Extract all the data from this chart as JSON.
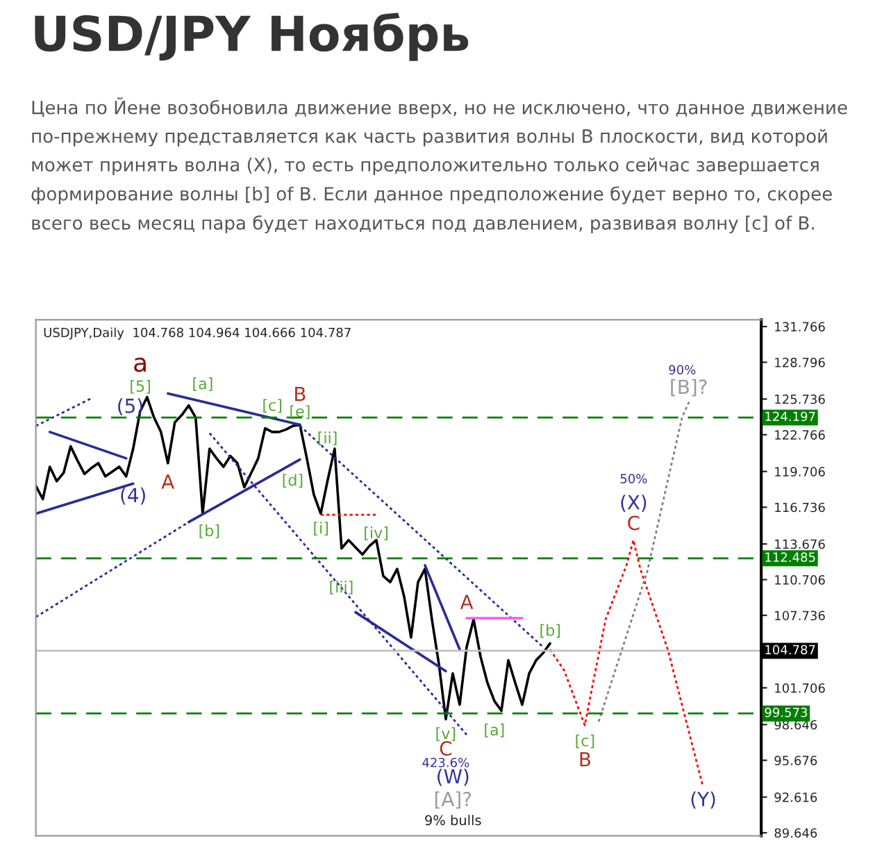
{
  "chart_data": {
    "type": "line",
    "title": "USD/JPY Ноябрь",
    "subtitle": "Цена по Йене возобновила движение вверх, но не исключено, что данное движение по-прежнему представляется как часть развития волны B плоскости, вид которой может принять волна (X), то есть предположительно только сейчас завершается формирование волны [b] of B. Если данное предположение будет верно то, скорее всего весь месяц пара будет находиться под давлением, развивая волну [c] of B.",
    "categories": [
      null,
      null,
      null,
      null,
      null,
      null,
      null,
      null,
      null,
      null,
      null,
      null,
      null,
      null,
      null,
      null,
      null,
      null,
      null,
      null,
      null,
      null,
      null,
      null,
      null,
      null,
      null,
      null,
      null,
      null,
      null,
      null,
      null,
      null,
      null,
      null,
      null,
      null,
      null,
      null,
      null,
      null,
      null,
      null,
      null,
      null,
      null,
      null,
      null,
      null,
      null,
      null,
      null,
      null,
      null,
      null,
      null,
      null,
      null,
      null,
      null,
      null,
      null,
      null,
      null,
      null,
      null,
      null,
      null,
      null,
      null,
      null,
      null,
      null,
      null,
      null,
      null,
      null,
      null,
      null,
      null,
      null,
      null,
      null,
      null,
      null,
      null,
      null,
      null,
      null,
      null,
      null,
      null,
      null,
      null,
      null,
      null,
      null,
      null,
      null,
      null,
      null,
      null,
      null,
      null
    ],
    "ylim": [
      89.39,
      132.33
    ],
    "yticks": [
      131.766,
      128.796,
      125.736,
      122.766,
      119.706,
      116.736,
      113.676,
      110.706,
      107.736,
      101.706,
      98.646,
      95.676,
      92.616,
      89.646
    ],
    "tick_labels": "y",
    "grid": false,
    "series": [
      {
        "color": "#000000",
        "line_style": "solid",
        "values": [
          118.5,
          117.4,
          120.1,
          118.9,
          119.6,
          121.8,
          120.6,
          119.5,
          120.0,
          120.4,
          119.3,
          119.7,
          120.1,
          119.3,
          121.6,
          124.7,
          125.9,
          124.2,
          123.0,
          120.4,
          123.8,
          124.4,
          125.2,
          124.2,
          116.2,
          121.6,
          120.8,
          120.1,
          121.0,
          120.4,
          118.4,
          119.6,
          120.8,
          123.3,
          123.0,
          123.0,
          123.2,
          123.5,
          123.6,
          120.8,
          117.8,
          116.2,
          119.0,
          121.6,
          113.3,
          114.0,
          113.4,
          112.8,
          113.5,
          114.0,
          111.0,
          110.5,
          111.6,
          109.3,
          105.9,
          110.5,
          111.6,
          107.4,
          103.7,
          99.1,
          102.9,
          100.3,
          105.1,
          107.4,
          104.3,
          102.1,
          100.6,
          99.8,
          104.0,
          102.1,
          100.3,
          102.9,
          104.0,
          104.6,
          105.4,
          null,
          null,
          null,
          null,
          null,
          null,
          null,
          null,
          null,
          null,
          null,
          null,
          null,
          null,
          null,
          null,
          null,
          null,
          null,
          null,
          null,
          null,
          null,
          null,
          null,
          null,
          null,
          null,
          null,
          null
        ]
      },
      {
        "color": "#ff0000",
        "line_style": "dotted",
        "values": [
          null,
          null,
          null,
          null,
          null,
          null,
          null,
          null,
          null,
          null,
          null,
          null,
          null,
          null,
          null,
          null,
          null,
          null,
          null,
          null,
          null,
          null,
          null,
          null,
          null,
          null,
          null,
          null,
          null,
          null,
          null,
          null,
          null,
          null,
          null,
          null,
          null,
          null,
          null,
          null,
          null,
          null,
          null,
          null,
          null,
          null,
          null,
          null,
          null,
          null,
          null,
          null,
          null,
          null,
          null,
          null,
          null,
          null,
          null,
          null,
          null,
          null,
          null,
          null,
          null,
          null,
          null,
          null,
          null,
          null,
          null,
          null,
          null,
          null,
          104.9,
          null,
          103.2,
          null,
          null,
          98.6,
          null,
          null,
          107.4,
          null,
          null,
          111.9,
          114.0,
          111.6,
          null,
          null,
          null,
          104.8,
          null,
          null,
          null,
          null,
          93.5,
          null,
          null,
          null,
          null,
          null,
          null,
          null,
          null
        ]
      },
      {
        "color": "#808080",
        "line_style": "dotted",
        "values": [
          null,
          null,
          null,
          null,
          null,
          null,
          null,
          null,
          null,
          null,
          null,
          null,
          null,
          null,
          null,
          null,
          null,
          null,
          null,
          null,
          null,
          null,
          null,
          null,
          null,
          null,
          null,
          null,
          null,
          null,
          null,
          null,
          null,
          null,
          null,
          null,
          null,
          null,
          null,
          null,
          null,
          null,
          null,
          null,
          null,
          null,
          null,
          null,
          null,
          null,
          null,
          null,
          null,
          null,
          null,
          null,
          null,
          null,
          null,
          null,
          null,
          null,
          null,
          null,
          null,
          null,
          null,
          null,
          null,
          null,
          null,
          null,
          null,
          null,
          null,
          null,
          null,
          null,
          null,
          null,
          null,
          98.9,
          null,
          null,
          null,
          null,
          null,
          null,
          111.4,
          null,
          null,
          null,
          null,
          124.2,
          125.5,
          null,
          null,
          null,
          null,
          null,
          null,
          null,
          null,
          null,
          null
        ]
      },
      {
        "color": "#2a2a9a",
        "line_style": "solid",
        "values": [
          null,
          null,
          123.0,
          null,
          null,
          null,
          null,
          null,
          null,
          null,
          null,
          null,
          null,
          120.8,
          null,
          null,
          null,
          null,
          null,
          null,
          null,
          null,
          null,
          null,
          null,
          null,
          null,
          null,
          null,
          null,
          null,
          null,
          null,
          null,
          null,
          null,
          null,
          null,
          null,
          null,
          null,
          null,
          null,
          null,
          null,
          null,
          null,
          null,
          null,
          null,
          null,
          null,
          null,
          null,
          null,
          null,
          null,
          null,
          null,
          null,
          null,
          null,
          null,
          null,
          null,
          null,
          null,
          null,
          null,
          null,
          null,
          null,
          null,
          null,
          null,
          null,
          null,
          null,
          null,
          null,
          null,
          null,
          null,
          null,
          null,
          null,
          null,
          null,
          null,
          null,
          null,
          null,
          null,
          null,
          null,
          null,
          null,
          null,
          null,
          null,
          null,
          null,
          null,
          null,
          null
        ]
      },
      {
        "color": "#2a2a9a",
        "line_style": "solid",
        "values": [
          116.2,
          null,
          null,
          null,
          null,
          null,
          null,
          null,
          null,
          null,
          null,
          null,
          null,
          null,
          118.7,
          null,
          null,
          null,
          null,
          null,
          null,
          null,
          null,
          null,
          null,
          null,
          null,
          null,
          null,
          null,
          null,
          null,
          null,
          null,
          null,
          null,
          null,
          null,
          null,
          null,
          null,
          null,
          null,
          null,
          null,
          null,
          null,
          null,
          null,
          null,
          null,
          null,
          null,
          null,
          null,
          null,
          null,
          null,
          null,
          null,
          null,
          null,
          null,
          null,
          null,
          null,
          null,
          null,
          null,
          null,
          null,
          null,
          null,
          null,
          null,
          null,
          null,
          null,
          null,
          null,
          null,
          null,
          null,
          null,
          null,
          null,
          null,
          null,
          null,
          null,
          null,
          null,
          null,
          null,
          null,
          null,
          null,
          null,
          null,
          null,
          null,
          null,
          null,
          null,
          null
        ]
      },
      {
        "color": "#2a2a9a",
        "line_style": "solid",
        "values": [
          null,
          null,
          null,
          null,
          null,
          null,
          null,
          null,
          null,
          null,
          null,
          null,
          null,
          null,
          null,
          null,
          null,
          null,
          null,
          126.2,
          null,
          null,
          null,
          null,
          null,
          null,
          null,
          null,
          null,
          null,
          null,
          null,
          null,
          null,
          null,
          null,
          null,
          null,
          123.6,
          null,
          null,
          null,
          null,
          null,
          null,
          null,
          null,
          null,
          null,
          null,
          null,
          null,
          null,
          null,
          null,
          null,
          null,
          null,
          null,
          null,
          null,
          null,
          null,
          null,
          null,
          null,
          null,
          null,
          null,
          null,
          null,
          null,
          null,
          null,
          null,
          null,
          null,
          null,
          null,
          null,
          null,
          null,
          null,
          null,
          null,
          null,
          null,
          null,
          null,
          null,
          null,
          null,
          null,
          null,
          null,
          null,
          null,
          null,
          null,
          null,
          null,
          null,
          null,
          null,
          null
        ]
      },
      {
        "color": "#2a2a9a",
        "line_style": "solid",
        "values": [
          null,
          null,
          null,
          null,
          null,
          null,
          null,
          null,
          null,
          null,
          null,
          null,
          null,
          null,
          null,
          null,
          null,
          null,
          null,
          null,
          null,
          null,
          115.5,
          null,
          null,
          null,
          null,
          null,
          null,
          null,
          null,
          null,
          null,
          null,
          null,
          null,
          null,
          null,
          120.7,
          null,
          null,
          null,
          null,
          null,
          null,
          null,
          null,
          null,
          null,
          null,
          null,
          null,
          null,
          null,
          null,
          null,
          null,
          null,
          null,
          null,
          null,
          null,
          null,
          null,
          null,
          null,
          null,
          null,
          null,
          null,
          null,
          null,
          null,
          null,
          null,
          null,
          null,
          null,
          null,
          null,
          null,
          null,
          null,
          null,
          null,
          null,
          null,
          null,
          null,
          null,
          null,
          null,
          null,
          null,
          null,
          null,
          null,
          null,
          null,
          null,
          null,
          null,
          null,
          null,
          null
        ]
      },
      {
        "color": "#2a2a9a",
        "line_style": "solid",
        "values": [
          null,
          null,
          null,
          null,
          null,
          null,
          null,
          null,
          null,
          null,
          null,
          null,
          null,
          null,
          null,
          null,
          null,
          null,
          null,
          null,
          null,
          null,
          null,
          null,
          null,
          null,
          null,
          null,
          null,
          null,
          null,
          null,
          null,
          null,
          null,
          null,
          null,
          null,
          null,
          null,
          null,
          null,
          null,
          null,
          null,
          null,
          null,
          null,
          null,
          null,
          null,
          null,
          null,
          null,
          null,
          null,
          111.9,
          null,
          null,
          null,
          null,
          104.9,
          null,
          null,
          null,
          null,
          null,
          null,
          null,
          null,
          null,
          null,
          null,
          null,
          null,
          null,
          null,
          null,
          null,
          null,
          null,
          null,
          null,
          null,
          null,
          null,
          null,
          null,
          null,
          null,
          null,
          null,
          null,
          null,
          null,
          null,
          null,
          null,
          null,
          null,
          null,
          null,
          null,
          null,
          null
        ]
      },
      {
        "color": "#2a2a9a",
        "line_style": "solid",
        "values": [
          null,
          null,
          null,
          null,
          null,
          null,
          null,
          null,
          null,
          null,
          null,
          null,
          null,
          null,
          null,
          null,
          null,
          null,
          null,
          null,
          null,
          null,
          null,
          null,
          null,
          null,
          null,
          null,
          null,
          null,
          null,
          null,
          null,
          null,
          null,
          null,
          null,
          null,
          null,
          null,
          null,
          null,
          null,
          null,
          null,
          null,
          108.0,
          null,
          null,
          null,
          null,
          null,
          null,
          null,
          null,
          null,
          null,
          null,
          null,
          103.1,
          null,
          null,
          null,
          null,
          null,
          null,
          null,
          null,
          null,
          null,
          null,
          null,
          null,
          null,
          null,
          null,
          null,
          null,
          null,
          null,
          null,
          null,
          null,
          null,
          null,
          null,
          null,
          null,
          null,
          null,
          null,
          null,
          null,
          null,
          null,
          null,
          null,
          null,
          null,
          null,
          null,
          null,
          null,
          null,
          null
        ]
      },
      {
        "color": "#2a2a9a",
        "line_style": "dotted",
        "values": [
          107.6,
          null,
          null,
          null,
          null,
          null,
          null,
          null,
          null,
          null,
          null,
          null,
          null,
          null,
          null,
          null,
          null,
          null,
          null,
          null,
          null,
          null,
          115.5,
          null,
          null,
          null,
          null,
          null,
          null,
          null,
          null,
          null,
          null,
          null,
          null,
          null,
          null,
          null,
          null,
          null,
          null,
          null,
          null,
          null,
          null,
          null,
          null,
          null,
          null,
          null,
          null,
          null,
          null,
          null,
          null,
          null,
          null,
          null,
          null,
          null,
          null,
          null,
          null,
          null,
          null,
          null,
          null,
          null,
          null,
          null,
          null,
          null,
          null,
          null,
          null,
          null,
          null,
          null,
          null,
          null,
          null,
          null,
          null,
          null,
          null,
          null,
          null,
          null,
          null,
          null,
          null,
          null,
          null,
          null,
          null,
          null,
          null,
          null,
          null,
          null,
          null,
          null,
          null,
          null,
          null
        ]
      },
      {
        "color": "#2a2a9a",
        "line_style": "dotted",
        "values": [
          123.5,
          null,
          null,
          null,
          null,
          null,
          null,
          null,
          125.8,
          null,
          null,
          null,
          null,
          null,
          null,
          null,
          null,
          null,
          null,
          null,
          null,
          null,
          null,
          null,
          null,
          null,
          null,
          null,
          null,
          null,
          null,
          null,
          null,
          null,
          null,
          null,
          null,
          null,
          null,
          null,
          null,
          null,
          null,
          null,
          null,
          null,
          null,
          null,
          null,
          null,
          null,
          null,
          null,
          null,
          null,
          null,
          null,
          null,
          null,
          null,
          null,
          null,
          null,
          null,
          null,
          null,
          null,
          null,
          null,
          null,
          null,
          null,
          null,
          null,
          null,
          null,
          null,
          null,
          null,
          null,
          null,
          null,
          null,
          null,
          null,
          null,
          null,
          null,
          null,
          null,
          null,
          null,
          null,
          null,
          null,
          null,
          null,
          null,
          null,
          null,
          null,
          null,
          null,
          null,
          null
        ]
      },
      {
        "color": "#2a2a9a",
        "line_style": "dotted",
        "values": [
          null,
          null,
          null,
          null,
          null,
          null,
          null,
          null,
          null,
          null,
          null,
          null,
          null,
          null,
          null,
          null,
          null,
          null,
          null,
          null,
          null,
          null,
          null,
          null,
          null,
          null,
          null,
          null,
          null,
          null,
          null,
          null,
          null,
          null,
          null,
          null,
          null,
          null,
          123.5,
          null,
          null,
          null,
          null,
          null,
          null,
          null,
          null,
          null,
          null,
          null,
          null,
          null,
          null,
          null,
          null,
          null,
          null,
          null,
          null,
          null,
          null,
          null,
          null,
          null,
          null,
          null,
          null,
          null,
          null,
          null,
          null,
          null,
          null,
          105.1,
          null,
          null,
          null,
          null,
          null,
          null,
          null,
          null,
          null,
          null,
          null,
          null,
          null,
          null,
          null,
          null,
          null,
          null,
          null,
          null,
          null,
          null,
          null,
          null,
          null,
          null,
          null,
          null,
          null,
          null,
          null
        ]
      },
      {
        "color": "#2a2a9a",
        "line_style": "dotted",
        "values": [
          null,
          null,
          null,
          null,
          null,
          null,
          null,
          null,
          null,
          null,
          null,
          null,
          null,
          null,
          null,
          null,
          null,
          null,
          null,
          null,
          null,
          null,
          null,
          null,
          null,
          122.9,
          null,
          null,
          null,
          null,
          null,
          null,
          null,
          null,
          null,
          null,
          null,
          null,
          null,
          null,
          null,
          null,
          null,
          null,
          null,
          null,
          null,
          null,
          null,
          null,
          null,
          null,
          null,
          null,
          null,
          null,
          null,
          null,
          null,
          null,
          null,
          null,
          97.8,
          null,
          null,
          null,
          null,
          null,
          null,
          null,
          null,
          null,
          null,
          null,
          null,
          null,
          null,
          null,
          null,
          null,
          null,
          null,
          null,
          null,
          null,
          null,
          null,
          null,
          null,
          null,
          null,
          null,
          null,
          null,
          null,
          null,
          null,
          null,
          null,
          null,
          null,
          null,
          null,
          null,
          null
        ]
      },
      {
        "color": "#ff0000",
        "line_style": "dotted",
        "values": [
          null,
          null,
          null,
          null,
          null,
          null,
          null,
          null,
          null,
          null,
          null,
          null,
          null,
          null,
          null,
          null,
          null,
          null,
          null,
          null,
          null,
          null,
          null,
          null,
          null,
          null,
          null,
          null,
          null,
          null,
          null,
          null,
          null,
          null,
          null,
          null,
          null,
          null,
          null,
          null,
          null,
          116.1,
          null,
          null,
          null,
          null,
          null,
          null,
          null,
          116.1,
          null,
          null,
          null,
          null,
          null,
          null,
          null,
          null,
          null,
          null,
          null,
          null,
          null,
          null,
          null,
          null,
          null,
          null,
          null,
          null,
          null,
          null,
          null,
          null,
          null,
          null,
          null,
          null,
          null,
          null,
          null,
          null,
          null,
          null,
          null,
          null,
          null,
          null,
          null,
          null,
          null,
          null,
          null,
          null,
          null,
          null,
          null,
          null,
          null,
          null,
          null,
          null,
          null,
          null,
          null
        ]
      },
      {
        "color": "#ff55ff",
        "line_style": "solid",
        "values": [
          null,
          null,
          null,
          null,
          null,
          null,
          null,
          null,
          null,
          null,
          null,
          null,
          null,
          null,
          null,
          null,
          null,
          null,
          null,
          null,
          null,
          null,
          null,
          null,
          null,
          null,
          null,
          null,
          null,
          null,
          null,
          null,
          null,
          null,
          null,
          null,
          null,
          null,
          null,
          null,
          null,
          null,
          null,
          null,
          null,
          null,
          null,
          null,
          null,
          null,
          null,
          null,
          null,
          null,
          null,
          null,
          null,
          null,
          null,
          null,
          null,
          null,
          107.5,
          null,
          null,
          null,
          null,
          null,
          null,
          null,
          107.5,
          null,
          null,
          null,
          null,
          null,
          null,
          null,
          null,
          null,
          null,
          null,
          null,
          null,
          null,
          null,
          null,
          null,
          null,
          null,
          null,
          null,
          null,
          null,
          null,
          null,
          null,
          null,
          null,
          null,
          null,
          null,
          null,
          null,
          null
        ]
      }
    ],
    "ref_lines": [
      {
        "axis": "y",
        "value": 124.197,
        "label": "124.197",
        "color": "#008000",
        "line_style": "dashed"
      },
      {
        "axis": "y",
        "value": 112.485,
        "label": "112.485",
        "color": "#008000",
        "line_style": "dashed"
      },
      {
        "axis": "y",
        "value": 104.787,
        "label": "104.787",
        "color": "#c0c0c0",
        "line_style": "solid"
      },
      {
        "axis": "y",
        "value": 99.573,
        "label": "99.573",
        "color": "#008000",
        "line_style": "dashed"
      }
    ],
    "annotations": [
      "USDJPY,Daily  104.768 104.964 104.666 104.787",
      "a",
      "[5]",
      "(5)",
      "(4)",
      "A",
      "[a]",
      "[b]",
      "[c]",
      "B",
      "[e]",
      "[d]",
      "[ii]",
      "[i]",
      "[iv]",
      "[iii]",
      "A",
      "[b]",
      "[v]",
      "C",
      "423.6%",
      "(W)",
      "[A]?",
      "9% bulls",
      "[a]",
      "[c]",
      "B",
      "(Y)",
      "50%",
      "(X)",
      "C",
      "90%",
      "[B]?"
    ]
  }
}
